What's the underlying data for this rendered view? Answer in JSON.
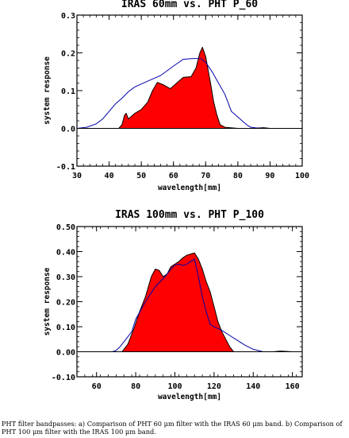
{
  "chart_data": [
    {
      "type": "area",
      "title": "IRAS 60mm vs. PHT P_60",
      "xlabel": "wavelength[mm]",
      "ylabel": "system response",
      "xlim": [
        30,
        100
      ],
      "ylim": [
        -0.1,
        0.3
      ],
      "xticks": [
        "30",
        "40",
        "50",
        "60",
        "70",
        "80",
        "90",
        "100"
      ],
      "yticks": [
        "-0.1",
        "0.0",
        "0.1",
        "0.2",
        "0.3"
      ],
      "series": [
        {
          "style": "filled",
          "color": "#ff0000",
          "x": [
            30,
            43,
            44,
            44.8,
            45.3,
            46,
            48,
            50,
            52,
            53.5,
            55,
            57,
            59,
            61,
            63,
            65.5,
            67,
            68.2,
            69,
            70,
            71.5,
            72.5,
            73.5,
            74.5,
            76,
            80,
            84,
            88,
            90,
            94,
            98,
            100
          ],
          "y": [
            0,
            0,
            0.01,
            0.035,
            0.04,
            0.025,
            0.04,
            0.05,
            0.07,
            0.1,
            0.122,
            0.115,
            0.105,
            0.12,
            0.135,
            0.137,
            0.16,
            0.2,
            0.215,
            0.19,
            0.12,
            0.07,
            0.035,
            0.01,
            0.003,
            0,
            0,
            0.002,
            0,
            0,
            0,
            0
          ]
        },
        {
          "style": "line",
          "color": "#0000aa",
          "x": [
            30,
            33,
            36,
            38,
            40,
            42,
            44,
            46,
            48,
            52,
            56,
            60,
            63,
            66,
            68.5,
            70,
            72,
            74,
            76,
            78,
            80,
            82,
            83,
            84,
            86,
            88,
            100
          ],
          "y": [
            0,
            0.003,
            0.012,
            0.025,
            0.045,
            0.065,
            0.08,
            0.097,
            0.11,
            0.125,
            0.14,
            0.165,
            0.183,
            0.185,
            0.185,
            0.175,
            0.15,
            0.12,
            0.09,
            0.045,
            0.03,
            0.015,
            0.008,
            0.003,
            0.001,
            0,
            0
          ]
        }
      ]
    },
    {
      "type": "area",
      "title": "IRAS 100mm vs. PHT P_100",
      "xlabel": "wavelength[mm]",
      "ylabel": "system response",
      "xlim": [
        50,
        165
      ],
      "ylim": [
        -0.1,
        0.5
      ],
      "xticks": [
        "60",
        "80",
        "100",
        "120",
        "140",
        "160"
      ],
      "yticks": [
        "-0.10",
        "0.00",
        "0.10",
        "0.20",
        "0.30",
        "0.40",
        "0.50"
      ],
      "series": [
        {
          "style": "filled",
          "color": "#ff0000",
          "x": [
            50,
            73,
            76,
            79,
            82,
            85,
            88,
            90,
            92,
            94,
            96,
            98,
            100,
            102,
            104,
            106,
            108,
            110,
            112,
            114,
            116,
            118,
            120,
            122,
            124,
            126,
            128,
            130,
            140,
            150,
            154,
            160,
            165
          ],
          "y": [
            0,
            0,
            0.03,
            0.09,
            0.16,
            0.22,
            0.3,
            0.33,
            0.325,
            0.3,
            0.31,
            0.34,
            0.35,
            0.36,
            0.375,
            0.385,
            0.39,
            0.395,
            0.37,
            0.33,
            0.28,
            0.24,
            0.18,
            0.12,
            0.08,
            0.05,
            0.02,
            0,
            0,
            0,
            0.003,
            0,
            0
          ]
        },
        {
          "style": "line",
          "color": "#0000aa",
          "x": [
            50,
            68,
            70,
            72,
            74,
            76,
            78,
            80,
            85,
            90,
            95,
            98,
            100,
            102,
            104,
            106,
            108,
            110,
            112,
            114,
            116,
            118,
            120,
            124,
            128,
            132,
            136,
            140,
            145,
            165
          ],
          "y": [
            0,
            0,
            0.005,
            0.02,
            0.04,
            0.06,
            0.08,
            0.13,
            0.2,
            0.26,
            0.3,
            0.33,
            0.345,
            0.35,
            0.345,
            0.35,
            0.36,
            0.37,
            0.3,
            0.22,
            0.16,
            0.11,
            0.1,
            0.085,
            0.065,
            0.045,
            0.025,
            0.01,
            0,
            0
          ]
        }
      ]
    }
  ],
  "caption": "PHT filter bandpasses: a) Comparison of PHT 60 μm filter with the IRAS 60 μm band. b) Comparison of PHT 100 μm filter with the IRAS 100 μm band."
}
